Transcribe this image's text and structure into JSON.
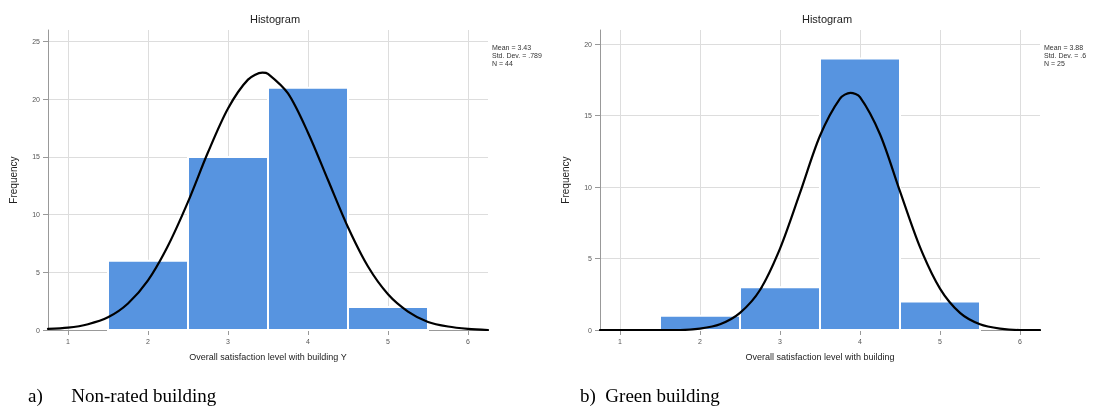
{
  "chart_data": [
    {
      "type": "histogram",
      "title": "Histogram",
      "xlabel": "Overall satisfaction level with building Y",
      "ylabel": "Frequency",
      "xlim": [
        0.75,
        6.25
      ],
      "xticks": [
        1,
        2,
        3,
        4,
        5,
        6
      ],
      "ylim": [
        0,
        26
      ],
      "yticks": [
        0,
        5,
        10,
        15,
        20,
        25
      ],
      "grid": true,
      "annotations": [
        "Mean = 3.43",
        "Std. Dev. = .789",
        "N = 44",
        "a)      Non-rated building"
      ],
      "series": [
        {
          "color": "#5794e0",
          "bins": [
            1.5,
            2.5,
            3.5,
            4.5,
            5.5
          ],
          "values": [
            6,
            15,
            21,
            2
          ]
        },
        {
          "type": "line",
          "color": "#000000",
          "marker": "none",
          "x": [
            0.75,
            1,
            1.25,
            1.5,
            1.75,
            2,
            2.25,
            2.5,
            2.75,
            3,
            3.25,
            3.43,
            3.5,
            3.75,
            4,
            4.25,
            4.5,
            4.75,
            5,
            5.25,
            5.5,
            5.75,
            6,
            6.25
          ],
          "values": [
            0.1,
            0.2,
            0.5,
            1.1,
            2.3,
            4.3,
            7.3,
            11.1,
            15.4,
            19.2,
            21.7,
            22.3,
            22.2,
            20.5,
            17.1,
            13,
            8.9,
            5.5,
            3.1,
            1.6,
            0.7,
            0.3,
            0.1,
            0
          ]
        }
      ]
    },
    {
      "type": "histogram",
      "title": "Histogram",
      "xlabel": "Overall satisfaction level with building",
      "ylabel": "Frequency",
      "xlim": [
        0.75,
        6.25
      ],
      "xticks": [
        1,
        2,
        3,
        4,
        5,
        6
      ],
      "ylim": [
        0,
        21
      ],
      "yticks": [
        0,
        5,
        10,
        15,
        20
      ],
      "grid": true,
      "annotations": [
        "Mean = 3.88",
        "Std. Dev. = .6",
        "N = 25",
        "b)  Green building"
      ],
      "series": [
        {
          "color": "#5794e0",
          "bins": [
            1.5,
            2.5,
            3.5,
            4.5,
            5.5
          ],
          "values": [
            1,
            3,
            19,
            2
          ]
        },
        {
          "type": "line",
          "color": "#000000",
          "marker": "none",
          "x": [
            0.75,
            1,
            1.25,
            1.5,
            1.75,
            2,
            2.25,
            2.5,
            2.75,
            3,
            3.25,
            3.5,
            3.75,
            3.88,
            4,
            4.25,
            4.5,
            4.75,
            5,
            5.25,
            5.5,
            5.75,
            6,
            6.25
          ],
          "values": [
            0,
            0,
            0,
            0,
            0,
            0.1,
            0.4,
            1.2,
            2.8,
            5.7,
            9.6,
            13.6,
            16.2,
            16.6,
            16.3,
            13.7,
            9.7,
            5.8,
            2.9,
            1.2,
            0.4,
            0.1,
            0,
            0
          ]
        }
      ]
    }
  ]
}
